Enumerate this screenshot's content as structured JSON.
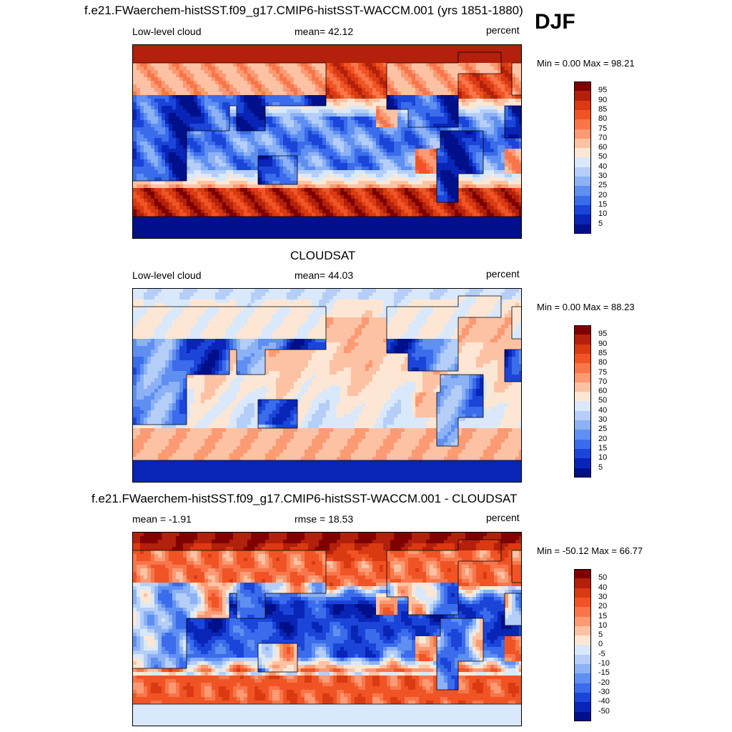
{
  "season": "DJF",
  "panels": [
    {
      "title": "f.e21.FWaerchem-histSST.f09_g17.CMIP6-histSST-WACCM.001 (yrs 1851-1880)",
      "left_label": "Low-level cloud",
      "center_label": "mean=  42.12",
      "units": "percent",
      "minmax": "Min =   0.00 Max =  98.21",
      "colorbar_ticks": [
        "95",
        "90",
        "85",
        "80",
        "75",
        "70",
        "60",
        "50",
        "40",
        "30",
        "25",
        "20",
        "15",
        "10",
        "5"
      ],
      "colorbar_colors": [
        "#800000",
        "#b3200b",
        "#d93a12",
        "#f05425",
        "#f8764a",
        "#fb9a73",
        "#fdc2a4",
        "#fde7d4",
        "#d9e8fb",
        "#b4cef8",
        "#8cb1f5",
        "#5f8ff0",
        "#3a6ceb",
        "#1b45d9",
        "#0925b8",
        "#00108a"
      ],
      "field": {
        "kind": "model",
        "description_values": {
          "north_polar": 90,
          "storm_track_n": 82,
          "subtropical_ocean": 20,
          "tropical_ocean": 28,
          "stratocumulus_east": 75,
          "southern_ocean": 92,
          "antarctica": 5,
          "land": 15
        }
      }
    },
    {
      "title": "CLOUDSAT",
      "left_label": "Low-level cloud",
      "center_label": "mean=  44.03",
      "units": "percent",
      "minmax": "Min =   0.00 Max =  88.23",
      "colorbar_ticks": [
        "95",
        "90",
        "85",
        "80",
        "75",
        "70",
        "60",
        "50",
        "40",
        "30",
        "25",
        "20",
        "15",
        "10",
        "5"
      ],
      "colorbar_colors": [
        "#800000",
        "#b3200b",
        "#d93a12",
        "#f05425",
        "#f8764a",
        "#fb9a73",
        "#fdc2a4",
        "#fde7d4",
        "#d9e8fb",
        "#b4cef8",
        "#8cb1f5",
        "#5f8ff0",
        "#3a6ceb",
        "#1b45d9",
        "#0925b8",
        "#00108a"
      ],
      "field": {
        "kind": "obs",
        "description_values": {
          "north_polar": 58,
          "storm_track_n": 66,
          "subtropical_ocean": 55,
          "tropical_ocean": 52,
          "stratocumulus_east": 64,
          "southern_ocean": 68,
          "antarctica": 8,
          "land": 32
        }
      }
    },
    {
      "title": "f.e21.FWaerchem-histSST.f09_g17.CMIP6-histSST-WACCM.001 - CLOUDSAT",
      "left_label": "mean =  -1.91",
      "center_label": "rmse =  18.53",
      "units": "percent",
      "minmax": "Min = -50.12 Max =  66.77",
      "colorbar_ticks": [
        "50",
        "40",
        "30",
        "20",
        "15",
        "10",
        "5",
        "0",
        "-5",
        "-10",
        "-15",
        "-20",
        "-30",
        "-40",
        "-50"
      ],
      "colorbar_colors": [
        "#800000",
        "#b3200b",
        "#d93a12",
        "#f05425",
        "#f8764a",
        "#fb9a73",
        "#fdc2a4",
        "#fde7d4",
        "#d9e8fb",
        "#b4cef8",
        "#8cb1f5",
        "#5f8ff0",
        "#3a6ceb",
        "#1b45d9",
        "#0925b8",
        "#00108a"
      ],
      "field": {
        "kind": "diff",
        "description_values": {
          "north_polar": 35,
          "storm_track_n": 16,
          "subtropical_ocean": -30,
          "tropical_ocean": -22,
          "stratocumulus_east": 10,
          "southern_ocean": 26,
          "antarctica": -5,
          "land": -15
        }
      }
    }
  ]
}
